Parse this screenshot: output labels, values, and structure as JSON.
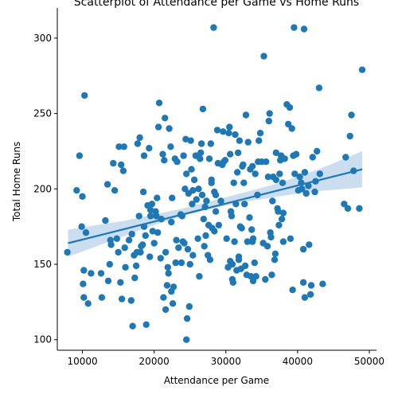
{
  "chart_data": {
    "type": "scatter",
    "title": "Scatterplot of Attendance per Game vs Home Runs",
    "xlabel": "Attendance per Game",
    "ylabel": "Total Home Runs",
    "xlim": [
      6500,
      51000
    ],
    "ylim": [
      93,
      320
    ],
    "xticks": [
      10000,
      20000,
      30000,
      40000,
      50000
    ],
    "yticks": [
      100,
      150,
      200,
      250,
      300
    ],
    "grid": false,
    "legend": "none",
    "colors": {
      "points": "#1f77b4",
      "fit_line": "#1f77b4",
      "band": "#a6c8e6"
    },
    "regression": {
      "x": [
        8000,
        49000
      ],
      "y": [
        164,
        213
      ],
      "band": {
        "x": [
          8000,
          12000,
          16000,
          20000,
          24000,
          28000,
          32000,
          36000,
          40000,
          44000,
          49000
        ],
        "lower": [
          155,
          162,
          169,
          176,
          182,
          187,
          191,
          194,
          197,
          199,
          201
        ],
        "upper": [
          173,
          176,
          179,
          183,
          187,
          192,
          197,
          202,
          208,
          215,
          225
        ]
      }
    },
    "points": [
      [
        7900,
        158
      ],
      [
        9200,
        199
      ],
      [
        9600,
        222
      ],
      [
        9900,
        175
      ],
      [
        10000,
        195
      ],
      [
        10100,
        137
      ],
      [
        10200,
        146
      ],
      [
        10200,
        128
      ],
      [
        10300,
        262
      ],
      [
        10500,
        171
      ],
      [
        10800,
        124
      ],
      [
        11200,
        144
      ],
      [
        12600,
        144
      ],
      [
        12700,
        128
      ],
      [
        13200,
        179
      ],
      [
        13500,
        203
      ],
      [
        13600,
        139
      ],
      [
        13800,
        150
      ],
      [
        13900,
        166
      ],
      [
        14000,
        163
      ],
      [
        14300,
        217
      ],
      [
        14500,
        199
      ],
      [
        14800,
        167
      ],
      [
        15000,
        158
      ],
      [
        15100,
        228
      ],
      [
        15300,
        138
      ],
      [
        15400,
        216
      ],
      [
        15500,
        127
      ],
      [
        15700,
        212
      ],
      [
        15800,
        228
      ],
      [
        15900,
        161
      ],
      [
        16000,
        148
      ],
      [
        16500,
        166
      ],
      [
        16800,
        126
      ],
      [
        16900,
        170
      ],
      [
        17000,
        109
      ],
      [
        17200,
        156
      ],
      [
        17300,
        141
      ],
      [
        17500,
        149
      ],
      [
        17600,
        158
      ],
      [
        17700,
        230
      ],
      [
        17900,
        182
      ],
      [
        18000,
        234
      ],
      [
        18100,
        158
      ],
      [
        18200,
        162
      ],
      [
        18400,
        163
      ],
      [
        18500,
        198
      ],
      [
        18600,
        222
      ],
      [
        18600,
        175
      ],
      [
        18800,
        169
      ],
      [
        18900,
        110
      ],
      [
        19100,
        189
      ],
      [
        19300,
        227
      ],
      [
        19400,
        155
      ],
      [
        19500,
        182
      ],
      [
        19500,
        186
      ],
      [
        19700,
        190
      ],
      [
        19800,
        172
      ],
      [
        20000,
        164
      ],
      [
        20200,
        185
      ],
      [
        20300,
        182
      ],
      [
        20400,
        194
      ],
      [
        20500,
        171
      ],
      [
        20600,
        241
      ],
      [
        20700,
        257
      ],
      [
        20900,
        154
      ],
      [
        21000,
        180
      ],
      [
        21200,
        223
      ],
      [
        21300,
        128
      ],
      [
        21400,
        219
      ],
      [
        21500,
        247
      ],
      [
        21600,
        120
      ],
      [
        21600,
        158
      ],
      [
        21800,
        136
      ],
      [
        21900,
        148
      ],
      [
        22000,
        144
      ],
      [
        22100,
        240
      ],
      [
        22300,
        228
      ],
      [
        22400,
        178
      ],
      [
        22400,
        132
      ],
      [
        22500,
        194
      ],
      [
        22600,
        124
      ],
      [
        22700,
        135
      ],
      [
        22900,
        220
      ],
      [
        23000,
        151
      ],
      [
        23100,
        166
      ],
      [
        23200,
        218
      ],
      [
        23400,
        161
      ],
      [
        23700,
        183
      ],
      [
        23800,
        151
      ],
      [
        23900,
        182
      ],
      [
        24000,
        165
      ],
      [
        24100,
        222
      ],
      [
        24200,
        164
      ],
      [
        24300,
        200
      ],
      [
        24400,
        233
      ],
      [
        24500,
        210
      ],
      [
        24500,
        100
      ],
      [
        24600,
        114
      ],
      [
        24700,
        160
      ],
      [
        24800,
        197
      ],
      [
        24900,
        122
      ],
      [
        25000,
        150
      ],
      [
        25100,
        232
      ],
      [
        25200,
        213
      ],
      [
        25300,
        190
      ],
      [
        25400,
        199
      ],
      [
        25400,
        156
      ],
      [
        25600,
        206
      ],
      [
        25800,
        222
      ],
      [
        25900,
        193
      ],
      [
        26100,
        167
      ],
      [
        26200,
        200
      ],
      [
        26300,
        142
      ],
      [
        26400,
        220
      ],
      [
        26500,
        224
      ],
      [
        26600,
        230
      ],
      [
        26700,
        196
      ],
      [
        26800,
        253
      ],
      [
        26900,
        180
      ],
      [
        27000,
        162
      ],
      [
        27100,
        188
      ],
      [
        27200,
        169
      ],
      [
        27300,
        192
      ],
      [
        27500,
        156
      ],
      [
        27600,
        176
      ],
      [
        27700,
        220
      ],
      [
        27800,
        153
      ],
      [
        27900,
        230
      ],
      [
        28000,
        206
      ],
      [
        28000,
        204
      ],
      [
        28100,
        174
      ],
      [
        28300,
        307
      ],
      [
        28400,
        172
      ],
      [
        28400,
        198
      ],
      [
        28600,
        185
      ],
      [
        28600,
        196
      ],
      [
        28800,
        239
      ],
      [
        28900,
        217
      ],
      [
        29000,
        176
      ],
      [
        29300,
        192
      ],
      [
        29500,
        216
      ],
      [
        29600,
        238
      ],
      [
        29700,
        218
      ],
      [
        29900,
        219
      ],
      [
        30100,
        167
      ],
      [
        30300,
        148
      ],
      [
        30400,
        237
      ],
      [
        30500,
        241
      ],
      [
        30600,
        223
      ],
      [
        30600,
        152
      ],
      [
        30700,
        185
      ],
      [
        30800,
        182
      ],
      [
        30900,
        150
      ],
      [
        30900,
        140
      ],
      [
        31000,
        138
      ],
      [
        31100,
        204
      ],
      [
        31200,
        165
      ],
      [
        31300,
        236
      ],
      [
        31400,
        190
      ],
      [
        31500,
        146
      ],
      [
        31600,
        211
      ],
      [
        31700,
        224
      ],
      [
        31800,
        153
      ],
      [
        31800,
        155
      ],
      [
        31900,
        232
      ],
      [
        32000,
        175
      ],
      [
        32100,
        147
      ],
      [
        32200,
        174
      ],
      [
        32300,
        215
      ],
      [
        32400,
        216
      ],
      [
        32500,
        204
      ],
      [
        32600,
        190
      ],
      [
        32700,
        149
      ],
      [
        32800,
        249
      ],
      [
        32900,
        143
      ],
      [
        33000,
        165
      ],
      [
        33100,
        231
      ],
      [
        33300,
        181
      ],
      [
        33400,
        213
      ],
      [
        33500,
        142
      ],
      [
        33600,
        173
      ],
      [
        33700,
        215
      ],
      [
        33700,
        165
      ],
      [
        33800,
        139
      ],
      [
        33800,
        167
      ],
      [
        34000,
        151
      ],
      [
        34100,
        210
      ],
      [
        34200,
        142
      ],
      [
        34400,
        196
      ],
      [
        34500,
        218
      ],
      [
        34600,
        232
      ],
      [
        34800,
        237
      ],
      [
        35000,
        218
      ],
      [
        35200,
        164
      ],
      [
        35300,
        288
      ],
      [
        35500,
        140
      ],
      [
        35600,
        218
      ],
      [
        35800,
        162
      ],
      [
        35900,
        208
      ],
      [
        36000,
        245
      ],
      [
        36100,
        250
      ],
      [
        36200,
        171
      ],
      [
        36300,
        168
      ],
      [
        36400,
        143
      ],
      [
        36500,
        192
      ],
      [
        36600,
        208
      ],
      [
        36800,
        153
      ],
      [
        36900,
        157
      ],
      [
        37000,
        224
      ],
      [
        37000,
        206
      ],
      [
        37200,
        187
      ],
      [
        37300,
        185
      ],
      [
        37400,
        176
      ],
      [
        37500,
        210
      ],
      [
        37600,
        219
      ],
      [
        37700,
        222
      ],
      [
        37800,
        180
      ],
      [
        37900,
        204
      ],
      [
        38000,
        184
      ],
      [
        38000,
        165
      ],
      [
        38200,
        220
      ],
      [
        38500,
        256
      ],
      [
        38700,
        243
      ],
      [
        38900,
        254
      ],
      [
        39000,
        167
      ],
      [
        39200,
        240
      ],
      [
        39300,
        133
      ],
      [
        39400,
        222
      ],
      [
        39500,
        307
      ],
      [
        39600,
        210
      ],
      [
        39800,
        223
      ],
      [
        40100,
        199
      ],
      [
        40300,
        208
      ],
      [
        40500,
        204
      ],
      [
        40600,
        200
      ],
      [
        40800,
        160
      ],
      [
        40800,
        138
      ],
      [
        40900,
        306
      ],
      [
        41000,
        128
      ],
      [
        41000,
        211
      ],
      [
        41200,
        197
      ],
      [
        41500,
        202
      ],
      [
        41600,
        163
      ],
      [
        41800,
        130
      ],
      [
        41900,
        136
      ],
      [
        42100,
        221
      ],
      [
        42400,
        198
      ],
      [
        42500,
        205
      ],
      [
        42700,
        225
      ],
      [
        43000,
        267
      ],
      [
        43100,
        210
      ],
      [
        43500,
        137
      ],
      [
        46500,
        190
      ],
      [
        46700,
        221
      ],
      [
        47000,
        187
      ],
      [
        47300,
        235
      ],
      [
        47500,
        249
      ],
      [
        47800,
        212
      ],
      [
        48600,
        187
      ],
      [
        49000,
        279
      ]
    ]
  }
}
